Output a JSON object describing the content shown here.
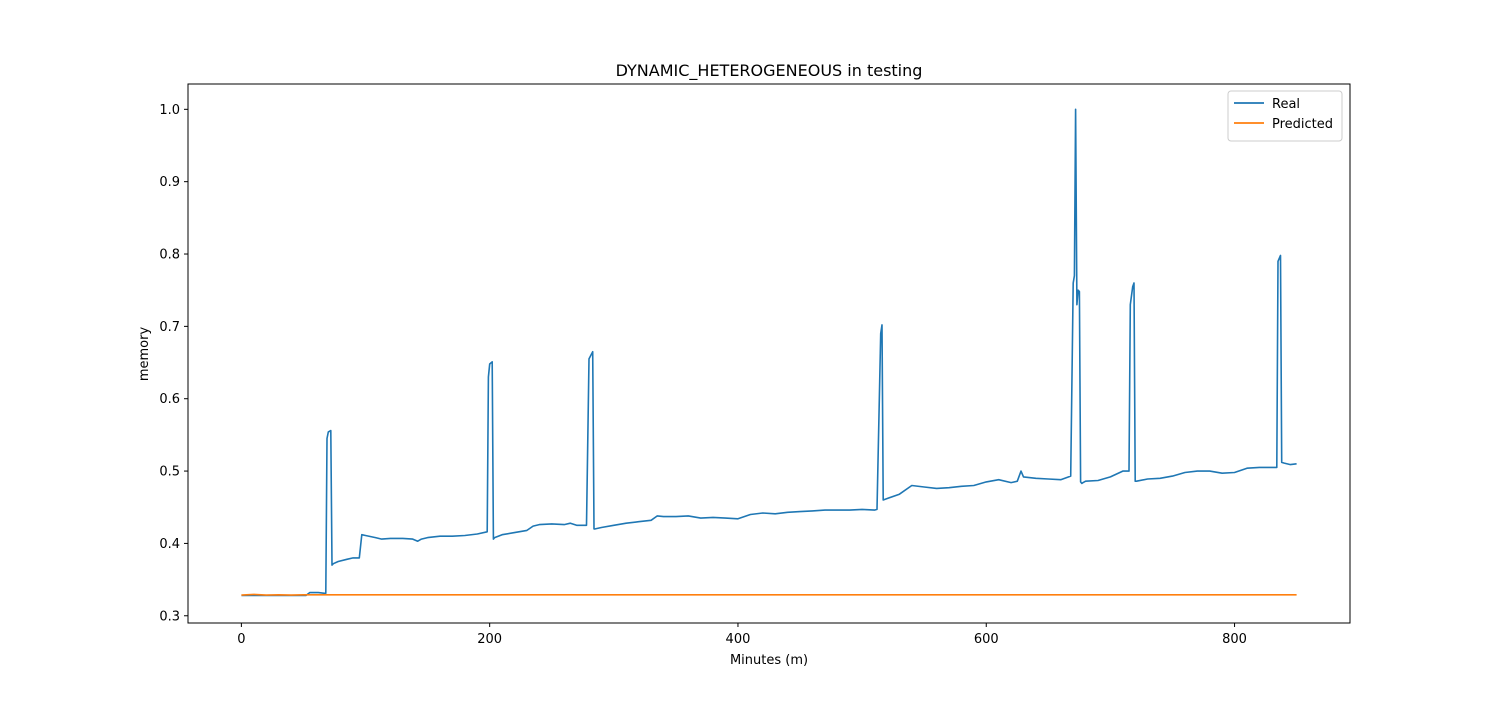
{
  "chart_data": {
    "type": "line",
    "title": "DYNAMIC_HETEROGENEOUS in testing",
    "xlabel": "Minutes (m)",
    "ylabel": "memory",
    "xlim": [
      -43,
      893
    ],
    "ylim": [
      0.29,
      1.035
    ],
    "xticks": [
      0,
      200,
      400,
      600,
      800
    ],
    "yticks": [
      0.3,
      0.4,
      0.5,
      0.6,
      0.7,
      0.8,
      0.9,
      1.0
    ],
    "grid": false,
    "legend_position": "top-right",
    "series": [
      {
        "name": "Real",
        "color": "#1f77b4",
        "x": [
          0,
          52,
          55,
          62,
          67,
          68,
          69,
          70,
          72,
          73,
          74,
          78,
          85,
          90,
          95,
          97,
          100,
          108,
          113,
          120,
          130,
          138,
          142,
          145,
          150,
          160,
          170,
          180,
          190,
          198,
          199,
          200,
          202,
          203,
          204,
          210,
          220,
          230,
          235,
          240,
          250,
          260,
          265,
          270,
          278,
          280,
          283,
          284,
          285,
          290,
          300,
          310,
          320,
          330,
          335,
          340,
          350,
          360,
          370,
          380,
          390,
          400,
          410,
          420,
          430,
          440,
          450,
          460,
          470,
          480,
          490,
          500,
          510,
          512,
          515,
          516,
          517,
          520,
          530,
          540,
          550,
          560,
          570,
          580,
          590,
          600,
          610,
          620,
          625,
          628,
          630,
          640,
          650,
          660,
          668,
          670,
          671,
          672,
          673,
          674,
          675,
          676,
          677,
          678,
          680,
          690,
          700,
          710,
          715,
          716,
          718,
          719,
          720,
          721,
          730,
          740,
          750,
          760,
          770,
          780,
          790,
          800,
          810,
          820,
          830,
          834,
          835,
          837,
          838,
          840,
          845,
          850
        ],
        "values": [
          0.328,
          0.328,
          0.332,
          0.332,
          0.331,
          0.331,
          0.545,
          0.554,
          0.556,
          0.37,
          0.372,
          0.375,
          0.378,
          0.38,
          0.38,
          0.412,
          0.411,
          0.408,
          0.406,
          0.407,
          0.407,
          0.406,
          0.403,
          0.406,
          0.408,
          0.41,
          0.41,
          0.411,
          0.413,
          0.416,
          0.63,
          0.648,
          0.651,
          0.406,
          0.408,
          0.412,
          0.415,
          0.418,
          0.424,
          0.426,
          0.427,
          0.426,
          0.428,
          0.425,
          0.425,
          0.655,
          0.665,
          0.42,
          0.42,
          0.422,
          0.425,
          0.428,
          0.43,
          0.432,
          0.438,
          0.437,
          0.437,
          0.438,
          0.435,
          0.436,
          0.435,
          0.434,
          0.44,
          0.442,
          0.441,
          0.443,
          0.444,
          0.445,
          0.446,
          0.446,
          0.446,
          0.447,
          0.446,
          0.447,
          0.69,
          0.702,
          0.46,
          0.462,
          0.468,
          0.48,
          0.478,
          0.476,
          0.477,
          0.479,
          0.48,
          0.485,
          0.488,
          0.484,
          0.486,
          0.5,
          0.492,
          0.49,
          0.489,
          0.488,
          0.493,
          0.76,
          0.77,
          1.0,
          0.73,
          0.75,
          0.748,
          0.485,
          0.483,
          0.484,
          0.486,
          0.487,
          0.492,
          0.5,
          0.5,
          0.73,
          0.755,
          0.76,
          0.486,
          0.486,
          0.489,
          0.49,
          0.493,
          0.498,
          0.5,
          0.5,
          0.497,
          0.498,
          0.504,
          0.505,
          0.505,
          0.505,
          0.79,
          0.798,
          0.512,
          0.511,
          0.509,
          0.51
        ]
      },
      {
        "name": "Predicted",
        "color": "#ff7f0e",
        "x": [
          0,
          10,
          20,
          30,
          40,
          50,
          60,
          100,
          200,
          300,
          400,
          500,
          600,
          700,
          800,
          850
        ],
        "values": [
          0.3285,
          0.3295,
          0.3285,
          0.329,
          0.3285,
          0.329,
          0.329,
          0.329,
          0.329,
          0.329,
          0.329,
          0.329,
          0.329,
          0.329,
          0.329,
          0.329
        ]
      }
    ]
  }
}
